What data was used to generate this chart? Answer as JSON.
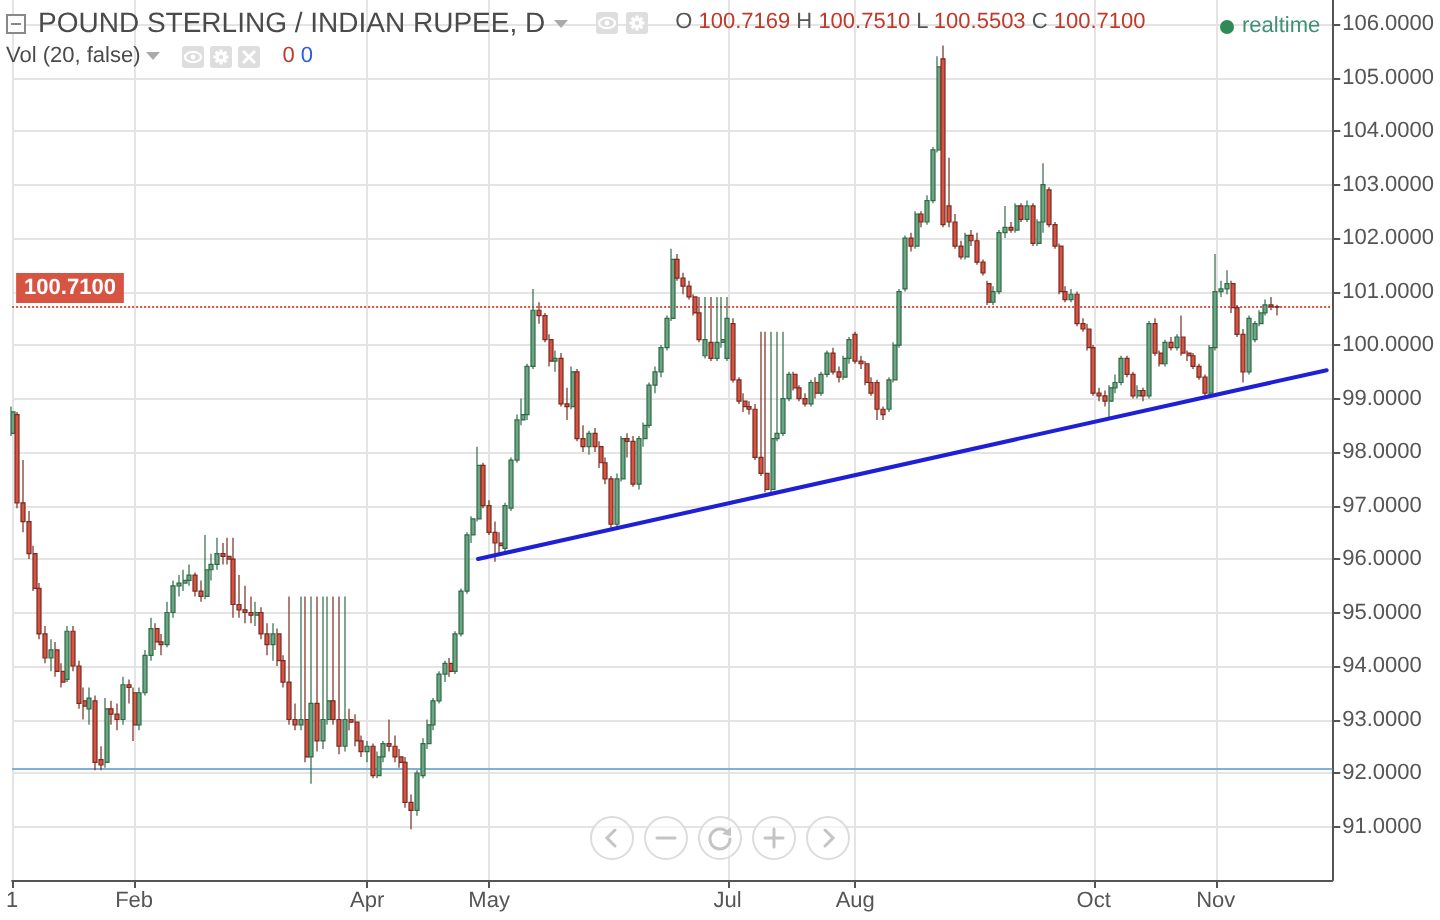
{
  "chart_data": {
    "type": "candlestick",
    "title": "POUND STERLING / INDIAN RUPEE, D",
    "subtitle": "O 100.7169 H 100.7510 L 100.5503 C 100.7100",
    "annotations": [
      "Vol (20, false)",
      "0",
      "0",
      "realtime"
    ],
    "categories": [
      "1",
      null,
      null,
      null,
      null,
      null,
      null,
      null,
      null,
      null,
      null,
      null,
      null,
      null,
      null,
      null,
      null,
      null,
      null,
      null,
      null,
      null,
      "Feb",
      null,
      null,
      null,
      null,
      null,
      null,
      null,
      null,
      null,
      null,
      null,
      null,
      null,
      null,
      null,
      null,
      null,
      null,
      null,
      null,
      null,
      null,
      null,
      null,
      null,
      null,
      null,
      null,
      null,
      null,
      null,
      null,
      null,
      null,
      null,
      null,
      null,
      null,
      null,
      null,
      null,
      "Apr",
      null,
      null,
      null,
      null,
      null,
      null,
      null,
      null,
      null,
      null,
      null,
      null,
      null,
      null,
      null,
      null,
      null,
      null,
      null,
      null,
      null,
      "May",
      null,
      null,
      null,
      null,
      null,
      null,
      null,
      null,
      null,
      null,
      null,
      null,
      null,
      null,
      null,
      null,
      null,
      null,
      null,
      null,
      null,
      null,
      null,
      null,
      null,
      null,
      null,
      null,
      null,
      null,
      null,
      null,
      null,
      null,
      null,
      null,
      null,
      null,
      null,
      null,
      null,
      null,
      "Jul",
      null,
      null,
      null,
      null,
      null,
      null,
      null,
      null,
      null,
      null,
      null,
      null,
      null,
      null,
      null,
      null,
      null,
      null,
      null,
      null,
      null,
      null,
      "Aug",
      null,
      null,
      null,
      null,
      null,
      null,
      null,
      null,
      null,
      null,
      null,
      null,
      null,
      null,
      null,
      null,
      null,
      null,
      null,
      null,
      null,
      null,
      null,
      null,
      null,
      null,
      null,
      null,
      null,
      null,
      null,
      null,
      null,
      null,
      null,
      null,
      null,
      null,
      null,
      null,
      null,
      null,
      "Oct",
      null,
      null,
      null,
      null,
      null,
      null,
      null,
      null,
      null,
      null,
      null,
      null,
      null,
      null,
      null,
      null,
      null,
      null,
      null,
      null,
      null,
      "Nov",
      null,
      null,
      null,
      null,
      null,
      null,
      null,
      null,
      null,
      null,
      null,
      null,
      null,
      null,
      null,
      null,
      null,
      null,
      null,
      null,
      null
    ],
    "ohlc": [
      [
        98.35,
        98.85,
        98.3,
        98.75
      ],
      [
        98.7,
        98.75,
        96.95,
        97.05
      ],
      [
        97.05,
        97.85,
        96.5,
        96.7
      ],
      [
        96.7,
        96.9,
        96.0,
        96.1
      ],
      [
        96.1,
        96.25,
        95.4,
        95.45
      ],
      [
        95.45,
        95.55,
        94.5,
        94.6
      ],
      [
        94.6,
        94.75,
        94.05,
        94.15
      ],
      [
        94.15,
        94.5,
        93.9,
        94.3
      ],
      [
        94.3,
        94.45,
        93.8,
        93.9
      ],
      [
        93.9,
        94.05,
        93.6,
        93.7
      ],
      [
        93.75,
        94.75,
        93.7,
        94.65
      ],
      [
        94.65,
        94.75,
        93.9,
        94.0
      ],
      [
        94.0,
        94.1,
        93.2,
        93.3
      ],
      [
        93.35,
        93.6,
        93.0,
        93.25
      ],
      [
        93.2,
        93.6,
        92.9,
        93.4
      ],
      [
        93.35,
        93.45,
        92.05,
        92.2
      ],
      [
        92.25,
        92.5,
        92.05,
        92.15
      ],
      [
        92.2,
        93.4,
        92.1,
        93.2
      ],
      [
        93.2,
        93.35,
        92.9,
        93.1
      ],
      [
        93.1,
        93.3,
        92.8,
        93.0
      ],
      [
        93.0,
        93.8,
        92.9,
        93.65
      ],
      [
        93.65,
        93.75,
        93.3,
        93.6
      ],
      [
        93.5,
        93.6,
        92.6,
        92.9
      ],
      [
        92.9,
        93.6,
        92.8,
        93.5
      ],
      [
        93.5,
        94.3,
        93.45,
        94.2
      ],
      [
        94.2,
        94.9,
        94.1,
        94.7
      ],
      [
        94.7,
        94.8,
        94.3,
        94.45
      ],
      [
        94.45,
        94.6,
        94.2,
        94.4
      ],
      [
        94.4,
        95.2,
        94.35,
        95.0
      ],
      [
        95.0,
        95.6,
        94.9,
        95.5
      ],
      [
        95.5,
        95.7,
        95.3,
        95.55
      ],
      [
        95.55,
        95.8,
        95.4,
        95.6
      ],
      [
        95.6,
        95.9,
        95.5,
        95.7
      ],
      [
        95.7,
        95.75,
        95.3,
        95.4
      ],
      [
        95.4,
        95.6,
        95.2,
        95.3
      ],
      [
        95.3,
        96.45,
        95.25,
        95.8
      ],
      [
        95.8,
        96.1,
        95.6,
        95.9
      ],
      [
        95.9,
        96.4,
        95.8,
        96.1
      ],
      [
        96.1,
        96.3,
        95.9,
        96.05
      ],
      [
        96.05,
        96.4,
        95.9,
        96.0
      ],
      [
        96.0,
        96.4,
        94.9,
        95.15
      ],
      [
        95.15,
        95.7,
        94.9,
        95.05
      ],
      [
        95.05,
        95.5,
        94.8,
        95.0
      ],
      [
        95.0,
        95.3,
        94.8,
        94.95
      ],
      [
        94.95,
        95.2,
        94.75,
        95.0
      ],
      [
        95.0,
        95.1,
        94.5,
        94.6
      ],
      [
        94.6,
        94.8,
        94.2,
        94.4
      ],
      [
        94.4,
        94.8,
        94.1,
        94.6
      ],
      [
        94.6,
        94.7,
        94.0,
        94.1
      ],
      [
        94.1,
        94.2,
        93.6,
        93.7
      ],
      [
        93.7,
        95.3,
        92.9,
        93.0
      ],
      [
        93.0,
        93.3,
        92.8,
        92.9
      ],
      [
        92.9,
        95.3,
        92.8,
        93.0
      ],
      [
        93.0,
        95.3,
        92.2,
        92.3
      ],
      [
        92.3,
        95.3,
        91.8,
        93.3
      ],
      [
        93.3,
        95.3,
        92.4,
        92.6
      ],
      [
        92.6,
        95.3,
        92.45,
        93.0
      ],
      [
        93.0,
        95.3,
        92.9,
        93.35
      ],
      [
        93.35,
        95.3,
        92.9,
        93.0
      ],
      [
        93.0,
        95.3,
        92.35,
        92.5
      ],
      [
        92.5,
        95.3,
        92.4,
        93.0
      ],
      [
        93.0,
        93.2,
        92.8,
        92.95
      ],
      [
        92.95,
        93.1,
        92.5,
        92.6
      ],
      [
        92.6,
        92.7,
        92.3,
        92.4
      ],
      [
        92.4,
        92.6,
        92.2,
        92.5
      ],
      [
        92.5,
        92.55,
        91.9,
        91.95
      ],
      [
        91.95,
        92.4,
        91.9,
        92.3
      ],
      [
        92.3,
        92.6,
        92.2,
        92.55
      ],
      [
        92.55,
        93.0,
        92.4,
        92.5
      ],
      [
        92.5,
        92.7,
        92.2,
        92.3
      ],
      [
        92.3,
        92.45,
        92.1,
        92.2
      ],
      [
        92.2,
        92.3,
        91.35,
        91.45
      ],
      [
        91.45,
        91.6,
        90.95,
        91.3
      ],
      [
        91.3,
        92.05,
        91.2,
        92.0
      ],
      [
        91.95,
        92.65,
        91.9,
        92.55
      ],
      [
        92.55,
        93.0,
        92.45,
        92.9
      ],
      [
        92.9,
        93.4,
        92.8,
        93.35
      ],
      [
        93.35,
        93.9,
        93.3,
        93.85
      ],
      [
        93.85,
        94.1,
        93.7,
        94.05
      ],
      [
        94.05,
        94.15,
        93.8,
        93.9
      ],
      [
        93.9,
        94.65,
        93.85,
        94.6
      ],
      [
        94.6,
        95.45,
        94.55,
        95.4
      ],
      [
        95.4,
        96.5,
        95.35,
        96.45
      ],
      [
        96.45,
        96.8,
        96.3,
        96.75
      ],
      [
        96.75,
        98.1,
        96.7,
        97.75
      ],
      [
        97.75,
        97.8,
        96.95,
        97.0
      ],
      [
        97.0,
        97.1,
        96.45,
        96.5
      ],
      [
        96.5,
        96.7,
        95.95,
        96.3
      ],
      [
        96.3,
        96.5,
        96.1,
        96.25
      ],
      [
        96.2,
        97.05,
        96.15,
        97.0
      ],
      [
        96.95,
        97.9,
        96.9,
        97.85
      ],
      [
        97.85,
        98.7,
        97.8,
        98.6
      ],
      [
        98.6,
        99.0,
        98.5,
        98.7
      ],
      [
        98.7,
        99.65,
        98.6,
        99.6
      ],
      [
        99.6,
        101.05,
        99.55,
        100.65
      ],
      [
        100.65,
        100.8,
        100.4,
        100.55
      ],
      [
        100.55,
        100.6,
        100.05,
        100.1
      ],
      [
        100.1,
        100.2,
        99.6,
        99.7
      ],
      [
        99.7,
        99.9,
        99.5,
        99.75
      ],
      [
        99.75,
        99.85,
        98.85,
        98.9
      ],
      [
        98.9,
        99.2,
        98.6,
        98.85
      ],
      [
        98.85,
        99.6,
        98.8,
        99.5
      ],
      [
        99.5,
        99.55,
        98.2,
        98.25
      ],
      [
        98.25,
        98.5,
        98.0,
        98.1
      ],
      [
        98.1,
        98.4,
        97.95,
        98.35
      ],
      [
        98.35,
        98.45,
        98.0,
        98.1
      ],
      [
        98.1,
        98.2,
        97.7,
        97.8
      ],
      [
        97.8,
        97.9,
        97.4,
        97.5
      ],
      [
        97.5,
        97.55,
        96.55,
        96.65
      ],
      [
        96.65,
        97.6,
        96.6,
        97.5
      ],
      [
        97.5,
        98.3,
        97.45,
        98.25
      ],
      [
        98.25,
        98.35,
        97.9,
        98.2
      ],
      [
        98.2,
        98.3,
        97.35,
        97.4
      ],
      [
        97.4,
        98.3,
        97.3,
        98.25
      ],
      [
        98.25,
        98.55,
        98.1,
        98.5
      ],
      [
        98.5,
        99.3,
        98.45,
        99.25
      ],
      [
        99.25,
        99.6,
        99.1,
        99.5
      ],
      [
        99.5,
        100.0,
        99.4,
        99.95
      ],
      [
        99.95,
        100.55,
        99.9,
        100.5
      ],
      [
        100.5,
        101.8,
        100.45,
        101.6
      ],
      [
        101.6,
        101.7,
        101.2,
        101.25
      ],
      [
        101.25,
        101.35,
        100.95,
        101.1
      ],
      [
        101.1,
        101.2,
        100.85,
        100.9
      ],
      [
        100.9,
        100.95,
        100.55,
        100.6
      ],
      [
        100.6,
        100.9,
        100.05,
        100.1
      ],
      [
        99.8,
        100.9,
        99.75,
        100.1
      ],
      [
        100.05,
        100.9,
        99.7,
        99.75
      ],
      [
        99.75,
        100.9,
        99.7,
        100.05
      ],
      [
        100.05,
        100.9,
        99.95,
        100.1
      ],
      [
        99.75,
        100.9,
        99.7,
        100.5
      ],
      [
        100.4,
        100.5,
        99.3,
        99.35
      ],
      [
        99.35,
        99.4,
        98.9,
        98.95
      ],
      [
        98.95,
        99.1,
        98.75,
        98.85
      ],
      [
        98.85,
        98.95,
        98.7,
        98.8
      ],
      [
        98.8,
        98.9,
        97.85,
        97.9
      ],
      [
        97.9,
        100.25,
        97.55,
        97.6
      ],
      [
        97.6,
        100.25,
        97.25,
        97.3
      ],
      [
        97.3,
        100.25,
        97.25,
        98.25
      ],
      [
        98.25,
        100.25,
        98.2,
        98.35
      ],
      [
        98.35,
        100.25,
        98.3,
        99.0
      ],
      [
        99.0,
        99.5,
        98.95,
        99.45
      ],
      [
        99.45,
        99.5,
        99.15,
        99.2
      ],
      [
        99.2,
        99.25,
        98.95,
        99.0
      ],
      [
        99.0,
        99.1,
        98.85,
        98.9
      ],
      [
        98.9,
        99.35,
        98.85,
        99.3
      ],
      [
        99.3,
        99.4,
        99.0,
        99.1
      ],
      [
        99.1,
        99.5,
        99.05,
        99.45
      ],
      [
        99.45,
        99.9,
        99.4,
        99.85
      ],
      [
        99.85,
        99.95,
        99.45,
        99.5
      ],
      [
        99.5,
        99.6,
        99.3,
        99.4
      ],
      [
        99.4,
        99.8,
        99.35,
        99.75
      ],
      [
        99.75,
        100.15,
        99.65,
        100.1
      ],
      [
        100.2,
        100.25,
        99.65,
        99.7
      ],
      [
        99.7,
        99.8,
        99.55,
        99.65
      ],
      [
        99.65,
        99.7,
        99.25,
        99.3
      ],
      [
        99.3,
        99.4,
        99.05,
        99.1
      ],
      [
        99.3,
        99.35,
        98.6,
        98.8
      ],
      [
        98.8,
        98.85,
        98.6,
        98.7
      ],
      [
        98.8,
        99.4,
        98.75,
        99.35
      ],
      [
        99.35,
        100.05,
        99.3,
        100.0
      ],
      [
        100.0,
        101.05,
        99.95,
        101.0
      ],
      [
        101.05,
        102.05,
        101.0,
        102.0
      ],
      [
        102.0,
        102.1,
        101.75,
        101.85
      ],
      [
        101.85,
        102.5,
        101.8,
        102.45
      ],
      [
        102.45,
        102.5,
        102.2,
        102.3
      ],
      [
        102.3,
        102.8,
        102.25,
        102.7
      ],
      [
        102.7,
        103.7,
        102.65,
        103.65
      ],
      [
        103.65,
        105.4,
        103.6,
        105.2
      ],
      [
        105.35,
        105.6,
        102.2,
        102.25
      ],
      [
        102.6,
        103.5,
        102.2,
        102.3
      ],
      [
        102.3,
        102.45,
        101.8,
        101.85
      ],
      [
        101.85,
        101.95,
        101.6,
        101.65
      ],
      [
        101.65,
        102.1,
        101.6,
        102.05
      ],
      [
        102.05,
        102.15,
        101.85,
        101.95
      ],
      [
        101.95,
        102.1,
        101.5,
        101.55
      ],
      [
        101.55,
        101.6,
        101.3,
        101.35
      ],
      [
        101.15,
        101.2,
        100.75,
        100.8
      ],
      [
        100.8,
        101.1,
        100.75,
        101.0
      ],
      [
        101.0,
        102.15,
        100.95,
        102.1
      ],
      [
        102.1,
        102.6,
        102.0,
        102.2
      ],
      [
        102.2,
        102.3,
        102.1,
        102.15
      ],
      [
        102.15,
        102.65,
        102.1,
        102.6
      ],
      [
        102.6,
        102.65,
        102.3,
        102.35
      ],
      [
        102.35,
        102.7,
        102.3,
        102.6
      ],
      [
        102.6,
        102.65,
        101.85,
        101.9
      ],
      [
        101.9,
        102.35,
        101.85,
        102.3
      ],
      [
        102.3,
        103.4,
        102.1,
        103.0
      ],
      [
        102.9,
        102.95,
        102.2,
        102.25
      ],
      [
        102.25,
        102.3,
        101.8,
        101.85
      ],
      [
        101.85,
        101.9,
        100.95,
        101.0
      ],
      [
        101.0,
        101.1,
        100.8,
        100.85
      ],
      [
        100.85,
        101.05,
        100.8,
        100.95
      ],
      [
        100.95,
        101.0,
        100.35,
        100.4
      ],
      [
        100.4,
        100.5,
        100.25,
        100.3
      ],
      [
        100.3,
        100.4,
        99.9,
        99.95
      ],
      [
        99.95,
        100.0,
        99.05,
        99.1
      ],
      [
        99.1,
        99.2,
        98.95,
        99.05
      ],
      [
        99.05,
        99.15,
        98.85,
        98.95
      ],
      [
        98.95,
        99.25,
        98.6,
        99.2
      ],
      [
        99.2,
        99.45,
        99.1,
        99.3
      ],
      [
        99.3,
        99.8,
        99.25,
        99.75
      ],
      [
        99.75,
        99.8,
        99.4,
        99.45
      ],
      [
        99.45,
        99.5,
        99.0,
        99.05
      ],
      [
        99.05,
        99.25,
        99.0,
        99.15
      ],
      [
        99.15,
        99.2,
        98.95,
        99.05
      ],
      [
        99.05,
        100.45,
        99.0,
        100.4
      ],
      [
        100.4,
        100.5,
        99.8,
        99.85
      ],
      [
        99.85,
        99.9,
        99.6,
        99.65
      ],
      [
        99.65,
        100.1,
        99.6,
        100.05
      ],
      [
        100.05,
        100.15,
        99.9,
        99.95
      ],
      [
        99.95,
        100.2,
        99.9,
        100.15
      ],
      [
        100.15,
        100.55,
        99.8,
        99.85
      ],
      [
        99.85,
        99.9,
        99.7,
        99.8
      ],
      [
        99.8,
        99.85,
        99.55,
        99.6
      ],
      [
        99.6,
        99.65,
        99.35,
        99.4
      ],
      [
        99.4,
        99.45,
        99.05,
        99.1
      ],
      [
        99.1,
        100.0,
        99.05,
        99.95
      ],
      [
        99.95,
        101.7,
        99.9,
        101.0
      ],
      [
        101.0,
        101.2,
        100.9,
        101.05
      ],
      [
        101.05,
        101.4,
        100.95,
        101.15
      ],
      [
        101.15,
        101.2,
        100.6,
        100.7
      ],
      [
        100.7,
        100.75,
        100.15,
        100.2
      ],
      [
        100.2,
        100.3,
        99.3,
        99.5
      ],
      [
        99.5,
        100.55,
        99.45,
        100.5
      ],
      [
        100.1,
        100.45,
        100.05,
        100.4
      ],
      [
        100.4,
        100.65,
        100.35,
        100.6
      ],
      [
        100.6,
        100.85,
        100.55,
        100.75
      ],
      [
        100.75,
        100.9,
        100.65,
        100.72
      ],
      [
        100.7169,
        100.751,
        100.5503,
        100.71
      ],
      null,
      null,
      null,
      null,
      null,
      null,
      null,
      null,
      null,
      null
    ],
    "series": [
      {
        "type": "line",
        "color": "#1f1fd6",
        "values": [
          null,
          null,
          null,
          null,
          null,
          null,
          null,
          null,
          null,
          null,
          null,
          null,
          null,
          null,
          null,
          null,
          null,
          null,
          null,
          null,
          null,
          null,
          null,
          null,
          null,
          null,
          null,
          null,
          null,
          null,
          null,
          null,
          null,
          null,
          null,
          null,
          null,
          null,
          null,
          null,
          null,
          null,
          null,
          null,
          null,
          null,
          null,
          null,
          null,
          null,
          null,
          null,
          null,
          null,
          null,
          null,
          null,
          null,
          null,
          null,
          null,
          null,
          null,
          null,
          null,
          null,
          null,
          null,
          null,
          null,
          null,
          null,
          null,
          null,
          null,
          null,
          null,
          null,
          null,
          null,
          null,
          null,
          null,
          null,
          96.0,
          null,
          null,
          null,
          null,
          null,
          null,
          null,
          null,
          null,
          null,
          null,
          null,
          null,
          null,
          null,
          null,
          null,
          null,
          null,
          null,
          null,
          null,
          null,
          null,
          null,
          null,
          null,
          null,
          null,
          null,
          null,
          null,
          null,
          null,
          null,
          null,
          null,
          null,
          null,
          null,
          null,
          null,
          null,
          null,
          null,
          null,
          null,
          null,
          null,
          null,
          null,
          null,
          null,
          null,
          null,
          null,
          null,
          null,
          null,
          null,
          null,
          null,
          null,
          null,
          null,
          null,
          null,
          null,
          null,
          null,
          null,
          null,
          null,
          null,
          null,
          null,
          null,
          null,
          null,
          null,
          null,
          null,
          null,
          null,
          null,
          null,
          null,
          null,
          null,
          null,
          null,
          null,
          null,
          null,
          null,
          null,
          null,
          null,
          null,
          null,
          null,
          null,
          null,
          null,
          null,
          null,
          null,
          null,
          null,
          null,
          null,
          null,
          null,
          null,
          null,
          null,
          null,
          null,
          null,
          null,
          null,
          null,
          null,
          null,
          null,
          null,
          null,
          null,
          null,
          null,
          null,
          null,
          null,
          null,
          null,
          null,
          null,
          null,
          null,
          null,
          null,
          null,
          null,
          null,
          null,
          null,
          null,
          null,
          null,
          null,
          null,
          null,
          99.53,
          null
        ]
      }
    ],
    "ylim": [
      90,
      106.45
    ],
    "yticks": [
      {
        "value": 91,
        "label": "91.0000"
      },
      {
        "value": 92,
        "label": "92.0000"
      },
      {
        "value": 93,
        "label": "93.0000"
      },
      {
        "value": 94,
        "label": "94.0000"
      },
      {
        "value": 95,
        "label": "95.0000"
      },
      {
        "value": 96,
        "label": "96.0000"
      },
      {
        "value": 97,
        "label": "97.0000"
      },
      {
        "value": 98,
        "label": "98.0000"
      },
      {
        "value": 99,
        "label": "99.0000"
      },
      {
        "value": 100,
        "label": "100.0000"
      },
      {
        "value": 101,
        "label": "101.0000"
      },
      {
        "value": 102,
        "label": "102.0000"
      },
      {
        "value": 103,
        "label": "103.0000"
      },
      {
        "value": 104,
        "label": "104.0000"
      },
      {
        "value": 105,
        "label": "105.0000"
      },
      {
        "value": 106,
        "label": "106.0000"
      }
    ],
    "ref_lines": [
      {
        "axis": "y",
        "value": 100.71,
        "label": "100.7100",
        "color": "#d75442",
        "line_style": "dotted"
      },
      {
        "axis": "y",
        "value": 92.1,
        "color": "#7fb0d6",
        "line_style": "solid"
      }
    ],
    "grid": true
  }
}
